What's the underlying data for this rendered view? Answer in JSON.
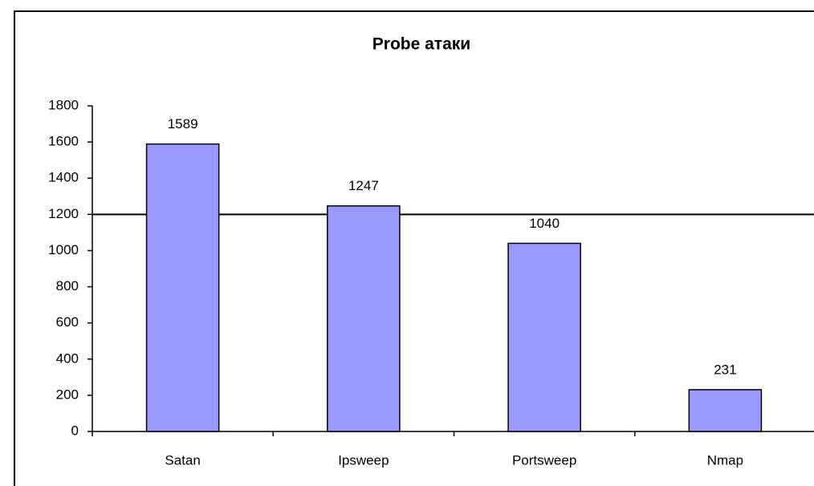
{
  "chart_data": {
    "type": "bar",
    "title": "Probe атаки",
    "categories": [
      "Satan",
      "Ipsweep",
      "Portsweep",
      "Nmap"
    ],
    "values": [
      1589,
      1247,
      1040,
      231
    ],
    "color": "#9999ff",
    "ylim": [
      0,
      1800
    ],
    "yticks": [
      0,
      200,
      400,
      600,
      800,
      1000,
      1200,
      1400,
      1600,
      1800
    ],
    "reference_line": 1200,
    "grid": false
  }
}
